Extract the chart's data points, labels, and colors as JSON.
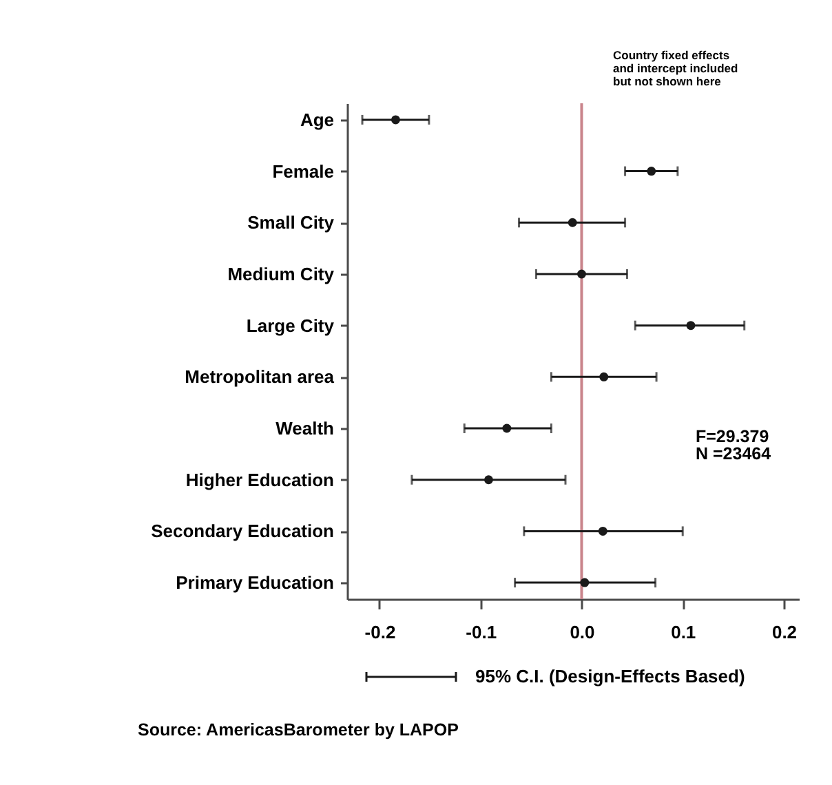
{
  "chart_data": {
    "type": "scatter",
    "orientation": "horizontal",
    "categories": [
      "Age",
      "Female",
      "Small City",
      "Medium City",
      "Large City",
      "Metropolitan area",
      "Wealth",
      "Higher Education",
      "Secondary Education",
      "Primary Education"
    ],
    "series": [
      {
        "name": "95% C.I. (Design-Effects Based)",
        "color": "#1a1a1a",
        "values": [
          -0.184,
          0.069,
          -0.009,
          0.0,
          0.108,
          0.022,
          -0.074,
          -0.092,
          0.021,
          0.003
        ],
        "errors": [
          [
            -0.217,
            -0.151
          ],
          [
            0.043,
            0.095
          ],
          [
            -0.062,
            0.043
          ],
          [
            -0.045,
            0.045
          ],
          [
            0.053,
            0.161
          ],
          [
            -0.03,
            0.074
          ],
          [
            -0.116,
            -0.03
          ],
          [
            -0.168,
            -0.016
          ],
          [
            -0.057,
            0.1
          ],
          [
            -0.066,
            0.073
          ]
        ]
      }
    ],
    "xlim": [
      -0.232,
      0.215
    ],
    "xticks": [
      -0.2,
      -0.1,
      {
        "value": 0,
        "label": "0.0"
      },
      0.1,
      0.2
    ],
    "ref_lines": [
      {
        "axis": "x",
        "value": 0,
        "color": "#c9848b"
      }
    ],
    "marker": "circle",
    "legend": "bottom",
    "annotations": [
      "Country fixed effects\nand intercept included\nbut not shown here",
      "F=29.379\nN =23464",
      "Source: AmericasBarometer by LAPOP"
    ]
  }
}
